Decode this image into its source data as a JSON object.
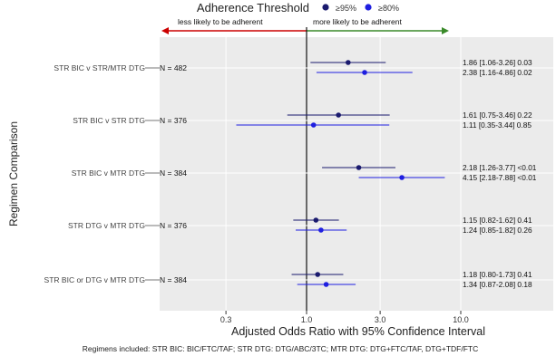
{
  "chart_data": {
    "type": "forest",
    "legend": {
      "title": "Adherence Threshold",
      "placement": "top",
      "entries": [
        {
          "label": "≥95%",
          "color": "#1a1a6e"
        },
        {
          "label": "≥80%",
          "color": "#1f1fe0"
        }
      ]
    },
    "direction_labels": {
      "left": "less likely to be adherent",
      "right": "more likely to be adherent",
      "left_color": "#cc0000",
      "right_color": "#3a8a2a"
    },
    "xlabel": "Adjusted Odds Ratio with 95% Confidence Interval",
    "ylabel": "Regimen Comparison",
    "x_scale": "log",
    "xlim": [
      0.15,
      16
    ],
    "x_ticks": [
      0.3,
      1.0,
      3.0,
      10.0
    ],
    "x_tick_labels": [
      "0.3",
      "1.0",
      "3.0",
      "10.0"
    ],
    "reference_line": 1.0,
    "grid": true,
    "groups": [
      {
        "label": "STR BIC v STR/MTR DTG",
        "n_label": "N = 482",
        "estimates": [
          {
            "series": "≥95%",
            "or": 1.86,
            "lo": 1.06,
            "hi": 3.26,
            "p": "0.03",
            "text": "1.86 [1.06-3.26] 0.03"
          },
          {
            "series": "≥80%",
            "or": 2.38,
            "lo": 1.16,
            "hi": 4.86,
            "p": "0.02",
            "text": "2.38 [1.16-4.86] 0.02"
          }
        ]
      },
      {
        "label": "STR BIC v STR DTG",
        "n_label": "N = 376",
        "estimates": [
          {
            "series": "≥95%",
            "or": 1.61,
            "lo": 0.75,
            "hi": 3.46,
            "p": "0.22",
            "text": "1.61 [0.75-3.46] 0.22"
          },
          {
            "series": "≥80%",
            "or": 1.11,
            "lo": 0.35,
            "hi": 3.44,
            "p": "0.85",
            "text": "1.11 [0.35-3.44] 0.85"
          }
        ]
      },
      {
        "label": "STR BIC v MTR DTG",
        "n_label": "N = 384",
        "estimates": [
          {
            "series": "≥95%",
            "or": 2.18,
            "lo": 1.26,
            "hi": 3.77,
            "p": "<0.01",
            "text": "2.18 [1.26-3.77] <0.01"
          },
          {
            "series": "≥80%",
            "or": 4.15,
            "lo": 2.18,
            "hi": 7.88,
            "p": "<0.01",
            "text": "4.15 [2.18-7.88] <0.01"
          }
        ]
      },
      {
        "label": "STR DTG v MTR DTG",
        "n_label": "N = 376",
        "estimates": [
          {
            "series": "≥95%",
            "or": 1.15,
            "lo": 0.82,
            "hi": 1.62,
            "p": "0.41",
            "text": "1.15 [0.82-1.62] 0.41"
          },
          {
            "series": "≥80%",
            "or": 1.24,
            "lo": 0.85,
            "hi": 1.82,
            "p": "0.26",
            "text": "1.24 [0.85-1.82] 0.26"
          }
        ]
      },
      {
        "label": "STR BIC or DTG v MTR DTG",
        "n_label": "N = 384",
        "estimates": [
          {
            "series": "≥95%",
            "or": 1.18,
            "lo": 0.8,
            "hi": 1.73,
            "p": "0.41",
            "text": "1.18 [0.80-1.73] 0.41"
          },
          {
            "series": "≥80%",
            "or": 1.34,
            "lo": 0.87,
            "hi": 2.08,
            "p": "0.18",
            "text": "1.34 [0.87-2.08] 0.18"
          }
        ]
      }
    ],
    "footnote": "Regimens included: STR BIC: BIC/FTC/TAF;  STR DTG: DTG/ABC/3TC;  MTR DTG: DTG+FTC/TAF, DTG+TDF/FTC"
  }
}
